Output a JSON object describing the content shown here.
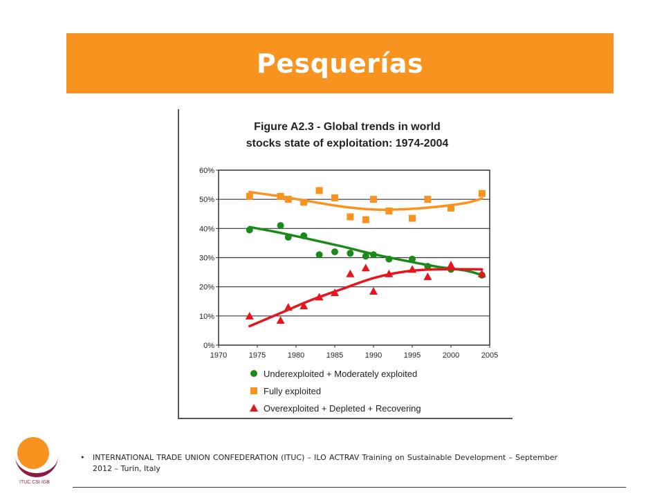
{
  "slide": {
    "title": "Pesquerías",
    "footer_bullet": "•",
    "footer_text": "INTERNATIONAL TRADE UNION CONFEDERATION (ITUC) – ILO ACTRAV Training on Sustainable Development – September 2012 – Turin, Italy",
    "logo_text": "ITUC CSI IGB"
  },
  "colors": {
    "header": "#f7931e",
    "underexploited": "#1a8a1a",
    "fully": "#f7931e",
    "overexploited": "#e8141c"
  },
  "chart_data": {
    "type": "scatter",
    "title_line1": "Figure A2.3 - Global trends in  world",
    "title_line2": "stocks state of exploitation:  1974-2004",
    "xlim": [
      1970,
      2005
    ],
    "ylim": [
      0,
      60
    ],
    "x_ticks": [
      "1970",
      "1975",
      "1980",
      "1985",
      "1990",
      "1995",
      "2000",
      "2005"
    ],
    "y_ticks": [
      "0%",
      "10%",
      "20%",
      "30%",
      "40%",
      "50%",
      "60%"
    ],
    "grid": "horizontal",
    "legend_position": "bottom",
    "series": [
      {
        "name": "Underexploited + Moderately exploited",
        "marker": "circle",
        "color": "#1a8a1a",
        "points": [
          [
            1974,
            39.5
          ],
          [
            1978,
            41
          ],
          [
            1979,
            37
          ],
          [
            1981,
            37.5
          ],
          [
            1983,
            31
          ],
          [
            1985,
            32
          ],
          [
            1987,
            31.5
          ],
          [
            1989,
            30.5
          ],
          [
            1990,
            31
          ],
          [
            1992,
            29.5
          ],
          [
            1995,
            29.5
          ],
          [
            1997,
            27
          ],
          [
            2000,
            26
          ],
          [
            2004,
            24
          ]
        ],
        "trend": [
          [
            1974,
            40.5
          ],
          [
            1978,
            38.5
          ],
          [
            1982,
            36.2
          ],
          [
            1986,
            33.8
          ],
          [
            1990,
            31.2
          ],
          [
            1994,
            29
          ],
          [
            1998,
            27
          ],
          [
            2002,
            25.5
          ],
          [
            2004,
            24
          ]
        ]
      },
      {
        "name": "Fully exploited",
        "marker": "square",
        "color": "#f7931e",
        "points": [
          [
            1974,
            51
          ],
          [
            1978,
            51
          ],
          [
            1979,
            50
          ],
          [
            1981,
            49
          ],
          [
            1983,
            53
          ],
          [
            1985,
            50.5
          ],
          [
            1987,
            44
          ],
          [
            1989,
            43
          ],
          [
            1990,
            50
          ],
          [
            1992,
            46
          ],
          [
            1995,
            43.5
          ],
          [
            1997,
            50
          ],
          [
            2000,
            47
          ],
          [
            2004,
            52
          ]
        ],
        "trend": [
          [
            1974,
            52.5
          ],
          [
            1978,
            51
          ],
          [
            1982,
            49.2
          ],
          [
            1986,
            47.5
          ],
          [
            1990,
            46.5
          ],
          [
            1994,
            46.6
          ],
          [
            1998,
            47.4
          ],
          [
            2002,
            48.8
          ],
          [
            2004,
            50.3
          ]
        ]
      },
      {
        "name": "Overexploited + Depleted + Recovering",
        "marker": "triangle",
        "color": "#e8141c",
        "points": [
          [
            1974,
            10
          ],
          [
            1978,
            8.5
          ],
          [
            1979,
            13
          ],
          [
            1981,
            13.5
          ],
          [
            1983,
            16.5
          ],
          [
            1985,
            18
          ],
          [
            1987,
            24.5
          ],
          [
            1989,
            26.5
          ],
          [
            1990,
            18.5
          ],
          [
            1992,
            24.5
          ],
          [
            1995,
            26
          ],
          [
            1997,
            23.5
          ],
          [
            2000,
            27.5
          ],
          [
            2004,
            24.5
          ]
        ],
        "trend": [
          [
            1974,
            6.5
          ],
          [
            1978,
            11
          ],
          [
            1982,
            15.5
          ],
          [
            1986,
            19.3
          ],
          [
            1990,
            23
          ],
          [
            1994,
            25.2
          ],
          [
            1998,
            26
          ],
          [
            2004,
            26
          ]
        ]
      }
    ]
  }
}
